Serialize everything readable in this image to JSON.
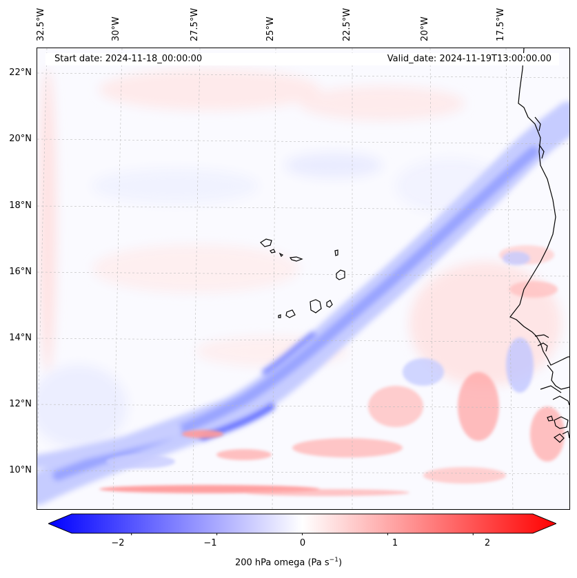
{
  "map": {
    "title_left": "Start date: 2024-11-18_00:00:00",
    "title_right": "Valid_date: 2024-11-19T13:00:00.00",
    "longitude_labels": [
      "32.5°W",
      "30°W",
      "27.5°W",
      "25°W",
      "22.5°W",
      "20°W",
      "17.5°W"
    ],
    "latitude_labels": [
      "22°N",
      "20°N",
      "18°N",
      "16°N",
      "14°N",
      "12°N",
      "10°N"
    ],
    "features": [
      "Cabo Verde islands",
      "West African coastline (Senegal, Gambia, Guinea-Bissau)"
    ]
  },
  "colorbar": {
    "label": "200 hPa omega (Pa s",
    "label_superscript": "−1",
    "label_close": ")",
    "range": [
      -2.7,
      2.7
    ],
    "ticks": [
      "−2",
      "−1",
      "0",
      "1",
      "2"
    ],
    "tick_values": [
      -2,
      -1,
      0,
      1,
      2
    ],
    "colormap": "bwr",
    "color_min": "#0000ff",
    "color_mid": "#ffffff",
    "color_max": "#ff0000"
  },
  "chart_data": {
    "type": "heatmap",
    "variable": "200 hPa omega",
    "units": "Pa s-1",
    "lon_range": [
      -33,
      -15.7
    ],
    "lat_range": [
      8.8,
      22.8
    ],
    "value_range": [
      -2.7,
      2.7
    ]
  }
}
